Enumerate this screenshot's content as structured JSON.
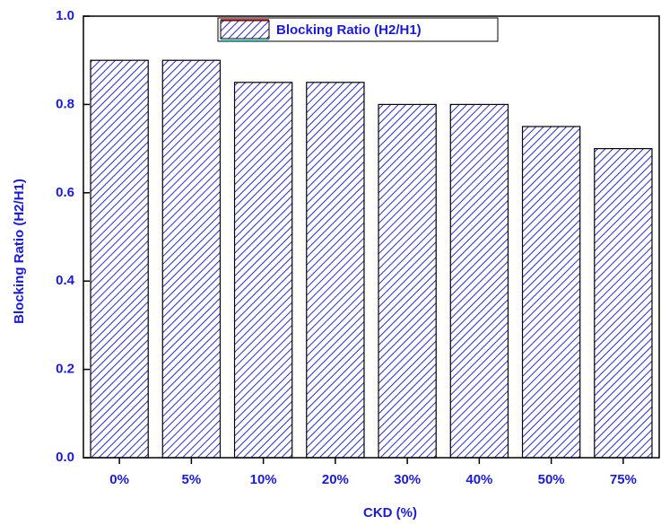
{
  "chart_data": {
    "type": "bar",
    "x_label": "CKD (%)",
    "y_label": "Blocking Ratio (H2/H1)",
    "legend": "Blocking Ratio (H2/H1)",
    "categories": [
      "0%",
      "5%",
      "10%",
      "20%",
      "30%",
      "40%",
      "50%",
      "75%"
    ],
    "values": [
      0.9,
      0.9,
      0.85,
      0.85,
      0.8,
      0.8,
      0.75,
      0.7
    ],
    "color": "#2a2ad0",
    "ylim": [
      0,
      1
    ],
    "yticks": [
      {
        "value": 0,
        "label": "0.0"
      },
      0.2,
      0.4,
      0.6,
      0.8,
      {
        "value": 1,
        "label": "1.0"
      }
    ],
    "grid": false
  }
}
